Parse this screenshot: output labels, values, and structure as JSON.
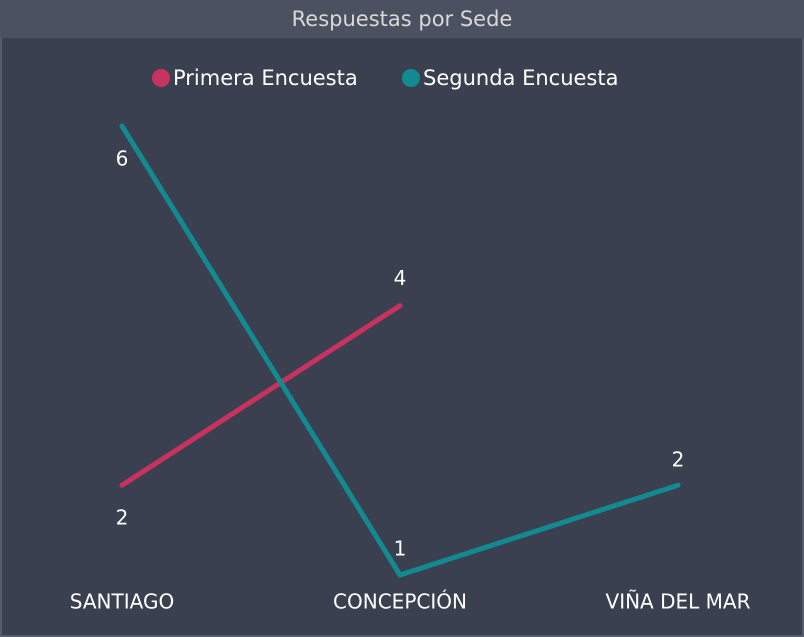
{
  "chart_data": {
    "type": "line",
    "title": "Respuestas por Sede",
    "categories": [
      "SANTIAGO",
      "CONCEPCIÓN",
      "VIÑA DEL MAR"
    ],
    "series": [
      {
        "name": "Primera Encuesta",
        "color": "#c8325f",
        "values": [
          2,
          4,
          null
        ]
      },
      {
        "name": "Segunda Encuesta",
        "color": "#138a8f",
        "values": [
          6,
          1,
          2
        ]
      }
    ],
    "ylim": [
      1,
      6
    ]
  }
}
